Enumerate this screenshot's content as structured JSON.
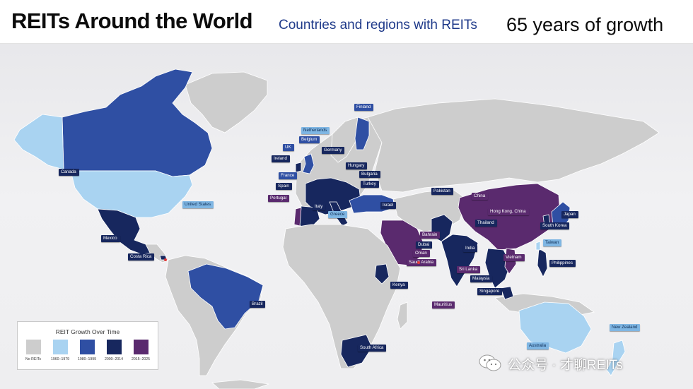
{
  "header": {
    "title": "REITs Around the World",
    "subtitle": "Countries and regions with REITs",
    "tagline": "65 years of growth"
  },
  "colors": {
    "no_reits": "#cdcdcd",
    "1960_1979": "#a9d3f1",
    "1980_1999": "#2f4fa3",
    "2000_2014": "#17275e",
    "2015_2025": "#5a2a6e",
    "ocean": "#eeeef0",
    "marker": "#e23b3b"
  },
  "legend": {
    "title": "REIT Growth Over Time",
    "items": [
      {
        "label": "No REITs",
        "color": "#cdcdcd"
      },
      {
        "label": "1960–1979",
        "color": "#a9d3f1"
      },
      {
        "label": "1980–1999",
        "color": "#2f4fa3"
      },
      {
        "label": "2000–2014",
        "color": "#17275e"
      },
      {
        "label": "2015–2025",
        "color": "#5a2a6e"
      }
    ]
  },
  "countries": {
    "finland": "Finland",
    "netherlands": "Netherlands",
    "belgium": "Belgium",
    "germany": "Germany",
    "uk": "UK",
    "ireland": "Ireland",
    "hungary": "Hungary",
    "france": "France",
    "bulgaria": "Bulgaria",
    "spain": "Spain",
    "turkey": "Turkey",
    "portugal": "Portugal",
    "italy": "Italy",
    "greece": "Greece",
    "israel": "Israel",
    "canada": "Canada",
    "united_states": "United States",
    "mexico": "Mexico",
    "costa_rica": "Costa Rica",
    "brazil": "Brazil",
    "pakistan": "Pakistan",
    "china": "China",
    "hong_kong": "Hong Kong, China",
    "japan": "Japan",
    "south_korea": "South Korea",
    "thailand": "Thailand",
    "india": "India",
    "taiwan": "Taiwan",
    "bahrain": "Bahrain",
    "dubai": "Dubai",
    "oman": "Oman",
    "saudi_arabia": "Saudi Arabia",
    "vietnam": "Vietnam",
    "philippines": "Philippines",
    "sri_lanka": "Sri Lanka",
    "malaysia": "Malaysia",
    "singapore": "Singapore",
    "kenya": "Kenya",
    "mauritius": "Mauritius",
    "south_africa": "South Africa",
    "australia": "Australia",
    "new_zealand": "New Zealand"
  },
  "watermark": {
    "text": "公众号 · 才聊REITs",
    "icon": "wechat-icon"
  }
}
